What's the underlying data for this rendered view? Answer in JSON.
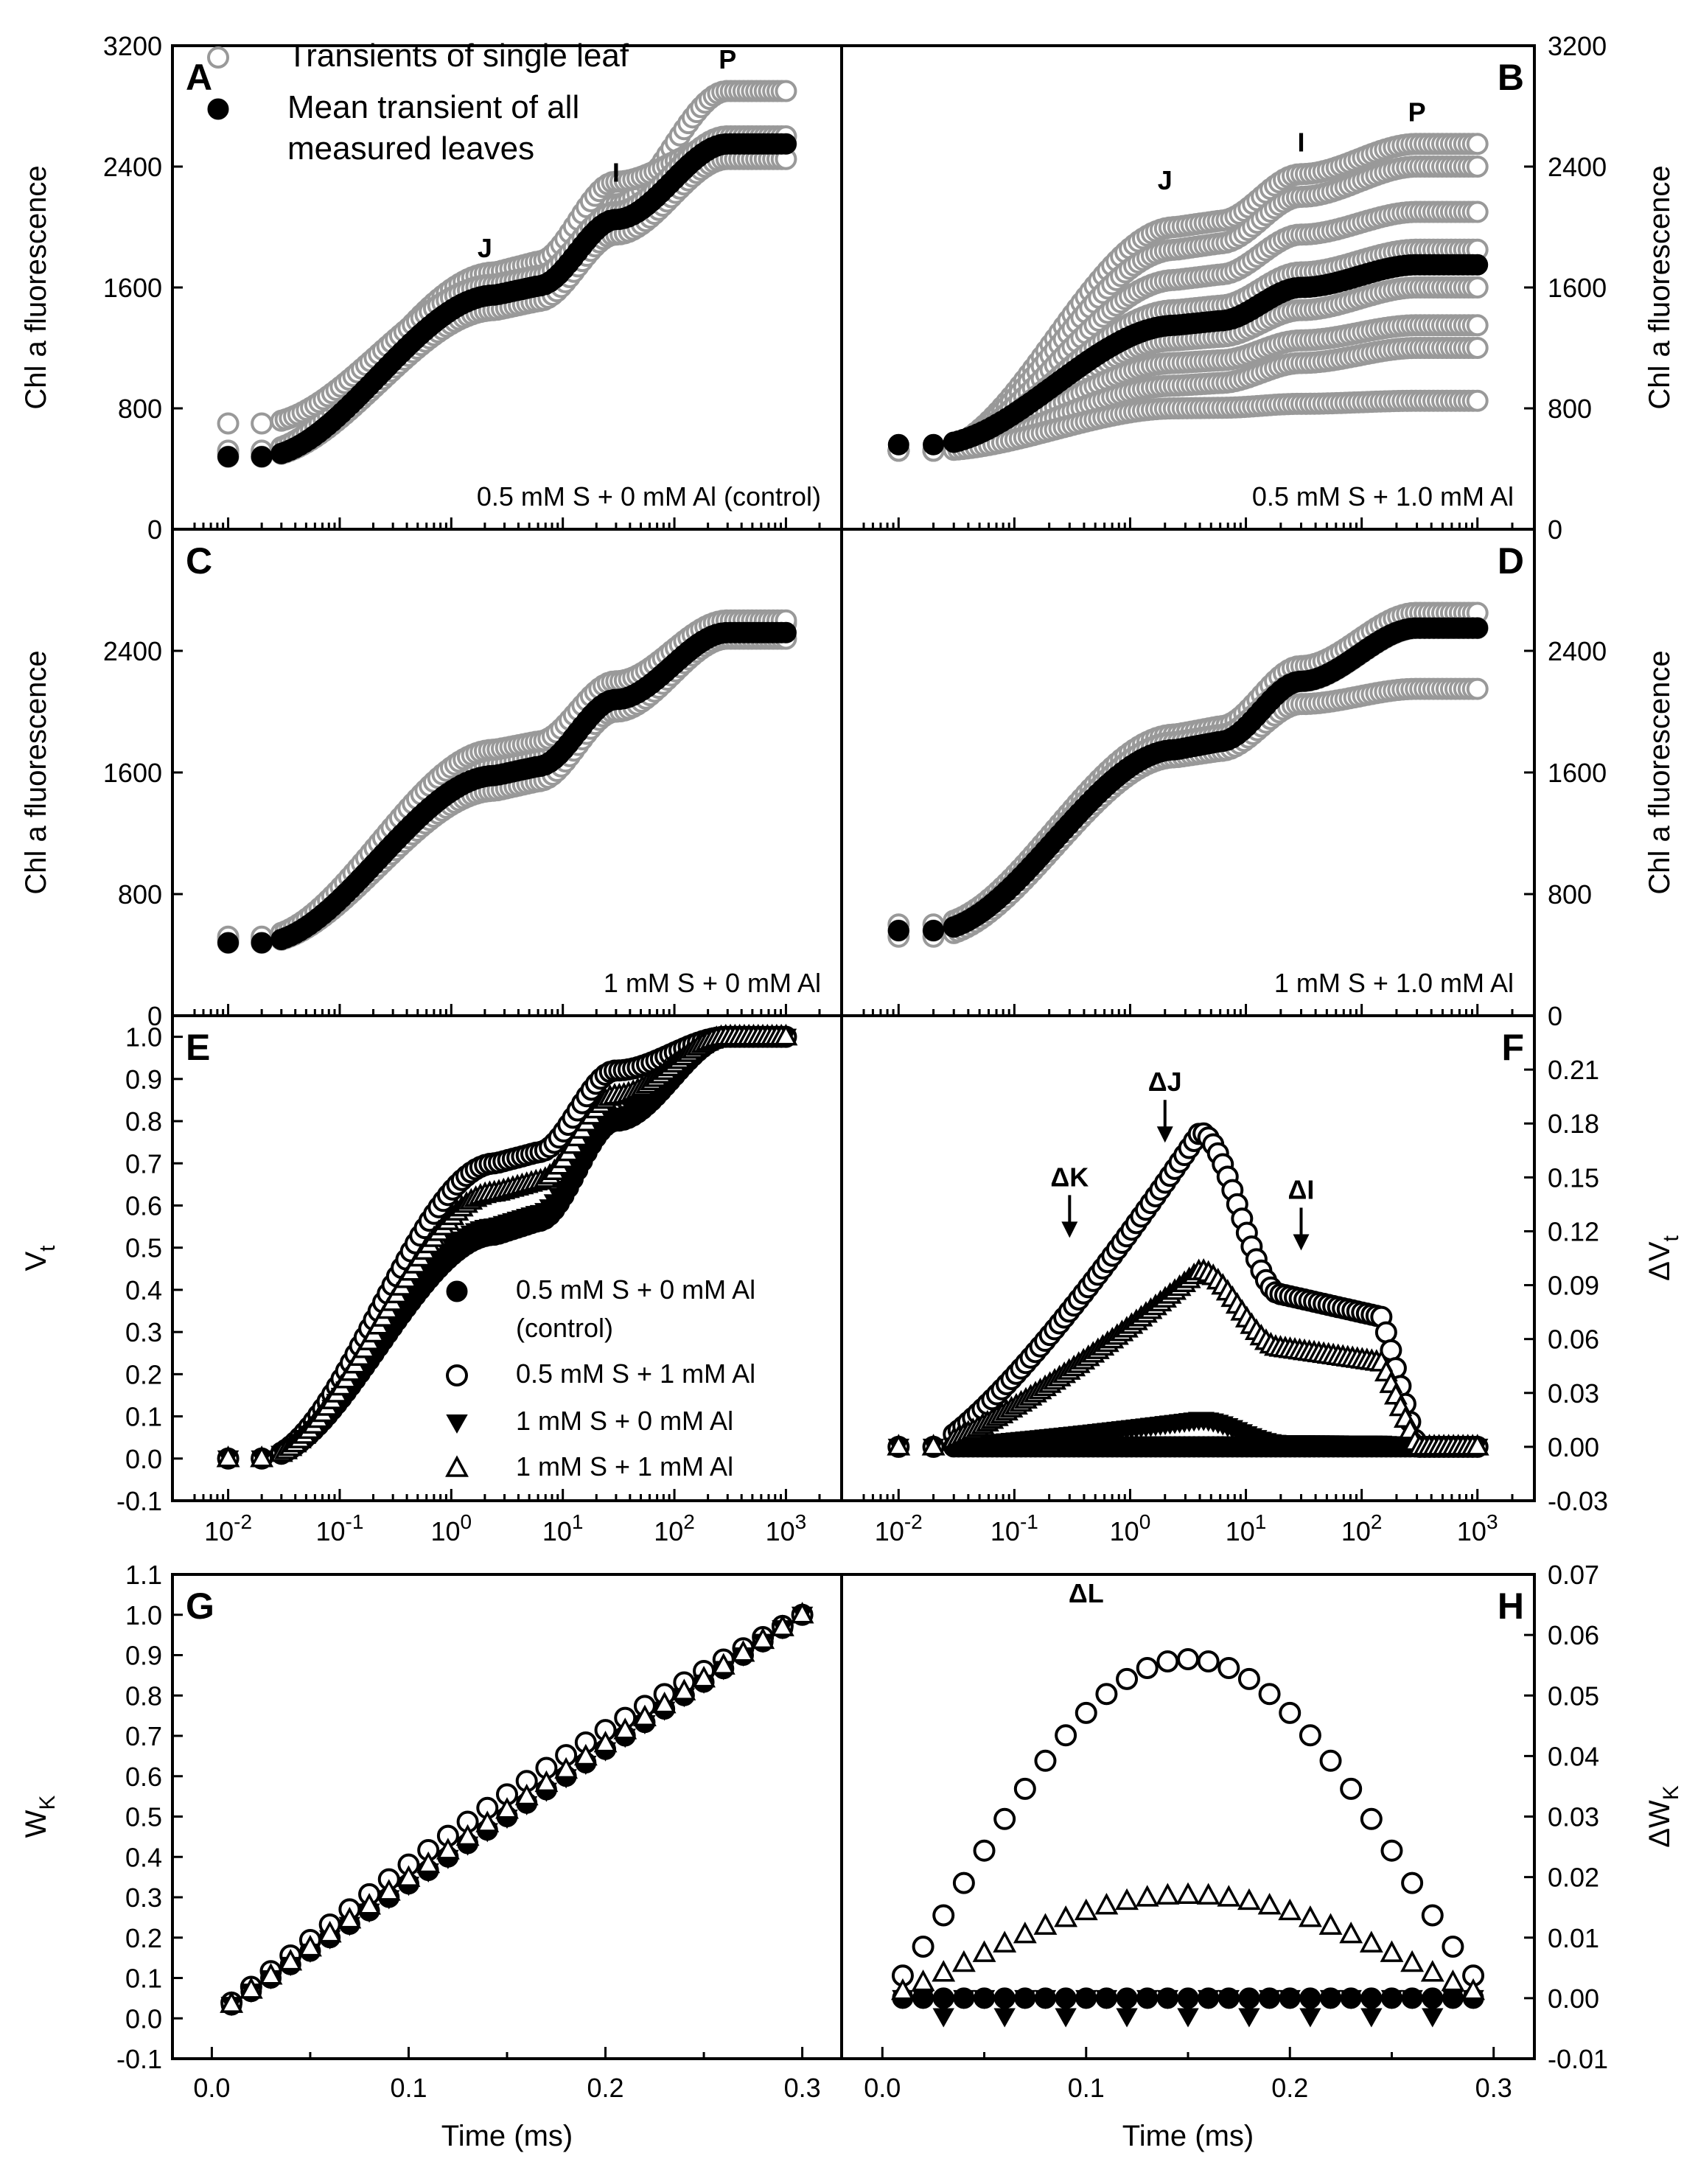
{
  "figure": {
    "xaxis_time_label": "Time (ms)",
    "legend_top": [
      {
        "marker": "gray-open-circle",
        "lines": [
          "Transients of single leaf"
        ]
      },
      {
        "marker": "filled-circle",
        "lines": [
          "Mean transient of all",
          "measured leaves"
        ]
      }
    ],
    "legend_e": [
      {
        "marker": "filled-circle",
        "lines": [
          "0.5 mM S + 0 mM Al",
          "(control)"
        ]
      },
      {
        "marker": "open-circle",
        "lines": [
          "0.5 mM S + 1 mM Al"
        ]
      },
      {
        "marker": "filled-down-triangle",
        "lines": [
          "1 mM S + 0 mM Al"
        ]
      },
      {
        "marker": "open-up-triangle",
        "lines": [
          "1 mM S + 1 mM Al"
        ]
      }
    ],
    "colors": {
      "frame": "#000000",
      "gray_marker": "#999999",
      "black_marker": "#000000"
    }
  },
  "chart_data": [
    {
      "panel": "A",
      "type": "scatter",
      "condition": "0.5 mM S + 0 mM Al (control)",
      "ylabel": "Chl a fluorescence",
      "ylim": [
        0,
        3200
      ],
      "yticks": [
        "0",
        "800",
        "1600",
        "2400",
        "3200"
      ],
      "xscale": "log",
      "xlim_ms": [
        0.005,
        2000
      ],
      "phase_labels": [
        {
          "text": "J",
          "x": 2,
          "y": 1800
        },
        {
          "text": "I",
          "x": 30,
          "y": 2300
        },
        {
          "text": "P",
          "x": 300,
          "y": 3050
        }
      ],
      "gray_transients": [
        {
          "O": 500,
          "J": 1580,
          "I": 2150,
          "P": 2900
        },
        {
          "O": 520,
          "J": 1700,
          "I": 2300,
          "P": 2550
        },
        {
          "O": 480,
          "J": 1450,
          "I": 1950,
          "P": 2450
        },
        {
          "O": 700,
          "J": 1620,
          "I": 2100,
          "P": 2600
        }
      ],
      "mean_transient": {
        "O": 480,
        "J": 1550,
        "I": 2050,
        "P": 2550
      }
    },
    {
      "panel": "B",
      "type": "scatter",
      "condition": "0.5 mM S + 1.0 mM Al",
      "ylabel": "Chl a fluorescence",
      "ylim": [
        0,
        3200
      ],
      "yticks": [
        "0",
        "800",
        "1600",
        "2400",
        "3200"
      ],
      "xscale": "log",
      "xlim_ms": [
        0.005,
        2000
      ],
      "phase_labels": [
        {
          "text": "J",
          "x": 2,
          "y": 2250
        },
        {
          "text": "I",
          "x": 30,
          "y": 2500
        },
        {
          "text": "P",
          "x": 300,
          "y": 2700
        }
      ],
      "gray_transients": [
        {
          "O": 520,
          "J": 2000,
          "I": 2350,
          "P": 2550
        },
        {
          "O": 520,
          "J": 1850,
          "I": 2200,
          "P": 2400
        },
        {
          "O": 520,
          "J": 1650,
          "I": 1950,
          "P": 2100
        },
        {
          "O": 520,
          "J": 1450,
          "I": 1700,
          "P": 1850
        },
        {
          "O": 520,
          "J": 1250,
          "I": 1450,
          "P": 1600
        },
        {
          "O": 520,
          "J": 1100,
          "I": 1250,
          "P": 1350
        },
        {
          "O": 520,
          "J": 950,
          "I": 1100,
          "P": 1200
        },
        {
          "O": 520,
          "J": 800,
          "I": 830,
          "P": 850
        }
      ],
      "mean_transient": {
        "O": 560,
        "J": 1350,
        "I": 1600,
        "P": 1750
      }
    },
    {
      "panel": "C",
      "type": "scatter",
      "condition": "1 mM S + 0 mM Al",
      "ylabel": "Chl a fluorescence",
      "ylim": [
        0,
        3200
      ],
      "yticks": [
        "0",
        "800",
        "1600",
        "2400"
      ],
      "xscale": "log",
      "xlim_ms": [
        0.005,
        2000
      ],
      "gray_transients": [
        {
          "O": 500,
          "J": 1650,
          "I": 2150,
          "P": 2580
        },
        {
          "O": 480,
          "J": 1480,
          "I": 2000,
          "P": 2480
        },
        {
          "O": 520,
          "J": 1750,
          "I": 2200,
          "P": 2600
        }
      ],
      "mean_transient": {
        "O": 480,
        "J": 1580,
        "I": 2080,
        "P": 2520
      }
    },
    {
      "panel": "D",
      "type": "scatter",
      "condition": "1 mM S + 1.0 mM Al",
      "ylabel": "Chl a fluorescence",
      "ylim": [
        0,
        3200
      ],
      "yticks": [
        "0",
        "800",
        "1600",
        "2400"
      ],
      "xscale": "log",
      "xlim_ms": [
        0.005,
        2000
      ],
      "gray_transients": [
        {
          "O": 600,
          "J": 1850,
          "I": 2300,
          "P": 2650
        },
        {
          "O": 520,
          "J": 1700,
          "I": 2050,
          "P": 2150
        },
        {
          "O": 560,
          "J": 1800,
          "I": 2200,
          "P": 2550
        }
      ],
      "mean_transient": {
        "O": 560,
        "J": 1750,
        "I": 2200,
        "P": 2550
      }
    },
    {
      "panel": "E",
      "type": "scatter",
      "ylabel": "Vt",
      "ylim": [
        -0.1,
        1.05
      ],
      "yticks": [
        "-0.1",
        "0.0",
        "0.1",
        "0.2",
        "0.3",
        "0.4",
        "0.5",
        "0.6",
        "0.7",
        "0.8",
        "0.9",
        "1.0"
      ],
      "xscale": "log",
      "xlim_ms": [
        0.005,
        2000
      ],
      "xtick_labels": [
        {
          "base": "10",
          "exp": "-2"
        },
        {
          "base": "10",
          "exp": "-1"
        },
        {
          "base": "10",
          "exp": "0"
        },
        {
          "base": "10",
          "exp": "1"
        },
        {
          "base": "10",
          "exp": "2"
        },
        {
          "base": "10",
          "exp": "3"
        }
      ],
      "series": [
        {
          "name": "0.5 mM S + 0 mM Al (control)",
          "marker": "filled-circle",
          "VJ": 0.53,
          "VI": 0.8
        },
        {
          "name": "0.5 mM S + 1 mM Al",
          "marker": "open-circle",
          "VJ": 0.7,
          "VI": 0.92
        },
        {
          "name": "1 mM S + 0 mM Al",
          "marker": "filled-down-triangle",
          "VJ": 0.55,
          "VI": 0.81
        },
        {
          "name": "1 mM S + 1 mM Al",
          "marker": "open-up-triangle",
          "VJ": 0.63,
          "VI": 0.86
        }
      ]
    },
    {
      "panel": "F",
      "type": "scatter",
      "ylabel": "ΔVt",
      "ylim": [
        -0.03,
        0.24
      ],
      "yticks": [
        "-0.03",
        "0.00",
        "0.03",
        "0.06",
        "0.09",
        "0.12",
        "0.15",
        "0.18",
        "0.21"
      ],
      "xscale": "log",
      "xlim_ms": [
        0.005,
        2000
      ],
      "xtick_labels": [
        {
          "base": "10",
          "exp": "-2"
        },
        {
          "base": "10",
          "exp": "-1"
        },
        {
          "base": "10",
          "exp": "0"
        },
        {
          "base": "10",
          "exp": "1"
        },
        {
          "base": "10",
          "exp": "2"
        },
        {
          "base": "10",
          "exp": "3"
        }
      ],
      "annotations": [
        {
          "text": "ΔK",
          "x": 0.3,
          "y": 0.127
        },
        {
          "text": "ΔJ",
          "x": 2,
          "y": 0.18
        },
        {
          "text": "ΔI",
          "x": 30,
          "y": 0.12
        }
      ],
      "series": [
        {
          "name": "0.5 mM S + 0 mM Al (control)",
          "marker": "filled-circle",
          "peak": 0.0,
          "plateau": 0.0
        },
        {
          "name": "0.5 mM S + 1 mM Al",
          "marker": "open-circle",
          "peak": 0.175,
          "plateau": 0.085
        },
        {
          "name": "1 mM S + 0 mM Al",
          "marker": "filled-down-triangle",
          "peak": 0.015,
          "plateau": 0.002
        },
        {
          "name": "1 mM S + 1 mM Al",
          "marker": "open-up-triangle",
          "peak": 0.098,
          "plateau": 0.055
        }
      ]
    },
    {
      "panel": "G",
      "type": "scatter",
      "ylabel": "WK",
      "xlabel": "Time (ms)",
      "xlim": [
        -0.02,
        0.32
      ],
      "ylim": [
        -0.1,
        1.1
      ],
      "xticks": [
        "0.0",
        "0.1",
        "0.2",
        "0.3"
      ],
      "yticks": [
        "-0.1",
        "0.0",
        "0.1",
        "0.2",
        "0.3",
        "0.4",
        "0.5",
        "0.6",
        "0.7",
        "0.8",
        "0.9",
        "1.0",
        "1.1"
      ],
      "series": [
        {
          "name": "0.5 mM S + 0 mM Al (control)",
          "marker": "filled-circle",
          "bend": 0.0
        },
        {
          "name": "0.5 mM S + 1 mM Al",
          "marker": "open-circle",
          "bend": 0.055
        },
        {
          "name": "1 mM S + 0 mM Al",
          "marker": "filled-down-triangle",
          "bend": -0.003
        },
        {
          "name": "1 mM S + 1 mM Al",
          "marker": "open-up-triangle",
          "bend": 0.016
        }
      ]
    },
    {
      "panel": "H",
      "type": "scatter",
      "ylabel": "ΔWK",
      "xlabel": "Time (ms)",
      "xlim": [
        -0.02,
        0.32
      ],
      "ylim": [
        -0.01,
        0.07
      ],
      "xticks": [
        "0.0",
        "0.1",
        "0.2",
        "0.3"
      ],
      "yticks": [
        "-0.01",
        "0.00",
        "0.01",
        "0.02",
        "0.03",
        "0.04",
        "0.05",
        "0.06",
        "0.07"
      ],
      "annotations": [
        {
          "text": "ΔL",
          "x": 0.1,
          "y": 0.06
        }
      ],
      "series": [
        {
          "name": "0.5 mM S + 0 mM Al (control)",
          "marker": "filled-circle",
          "peak": 0.0
        },
        {
          "name": "0.5 mM S + 1 mM Al",
          "marker": "open-circle",
          "peak": 0.056
        },
        {
          "name": "1 mM S + 0 mM Al",
          "marker": "filled-down-triangle",
          "peak": -0.002
        },
        {
          "name": "1 mM S + 1 mM Al",
          "marker": "open-up-triangle",
          "peak": 0.017
        }
      ]
    }
  ]
}
